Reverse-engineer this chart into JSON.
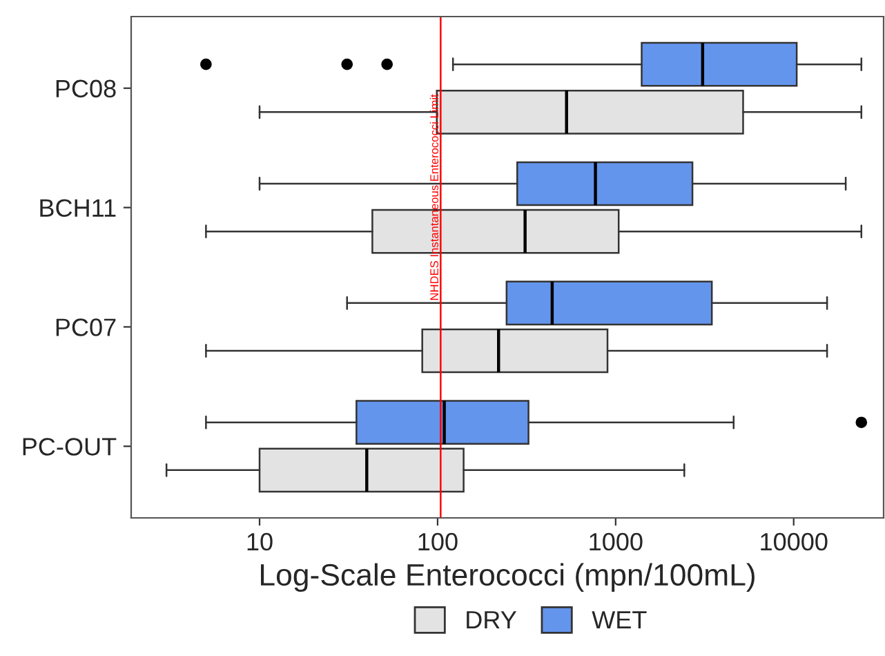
{
  "chart_data": {
    "type": "box",
    "orientation": "horizontal",
    "xlabel": "Log-Scale Enterococci (mpn/100mL)",
    "categories": [
      "PC08",
      "BCH11",
      "PC07",
      "PC-OUT"
    ],
    "log": "x",
    "xlim": [
      1.9,
      32000
    ],
    "xticks": [
      10,
      100,
      1000,
      10000
    ],
    "grid": false,
    "legend": "bottom",
    "series": [
      {
        "name": "DRY",
        "color": "#e3e3e3",
        "boxes": [
          {
            "low": 10,
            "q1": 99,
            "median": 530,
            "q3": 5200,
            "high": 24000
          },
          {
            "low": 5,
            "q1": 43,
            "median": 310,
            "q3": 1040,
            "high": 24000
          },
          {
            "low": 5,
            "q1": 82,
            "median": 220,
            "q3": 900,
            "high": 15400
          },
          {
            "low": 3,
            "q1": 10,
            "median": 40,
            "q3": 140,
            "high": 2430
          }
        ]
      },
      {
        "name": "WET",
        "color": "#6495ed",
        "boxes": [
          {
            "low": 122,
            "q1": 1400,
            "median": 3080,
            "q3": 10400,
            "high": 24000,
            "outliers": [
              5,
              31,
              52
            ]
          },
          {
            "low": 10,
            "q1": 280,
            "median": 770,
            "q3": 2700,
            "high": 19600
          },
          {
            "low": 31,
            "q1": 244,
            "median": 440,
            "q3": 3470,
            "high": 15400
          },
          {
            "low": 5,
            "q1": 35,
            "median": 109,
            "q3": 324,
            "high": 4600,
            "outliers": [
              24000
            ]
          }
        ]
      }
    ],
    "ref_lines": [
      {
        "axis": "x",
        "value": 104,
        "label": "NHDES Instantaneous Enterococci Limit",
        "color": "#ff0000"
      }
    ]
  }
}
